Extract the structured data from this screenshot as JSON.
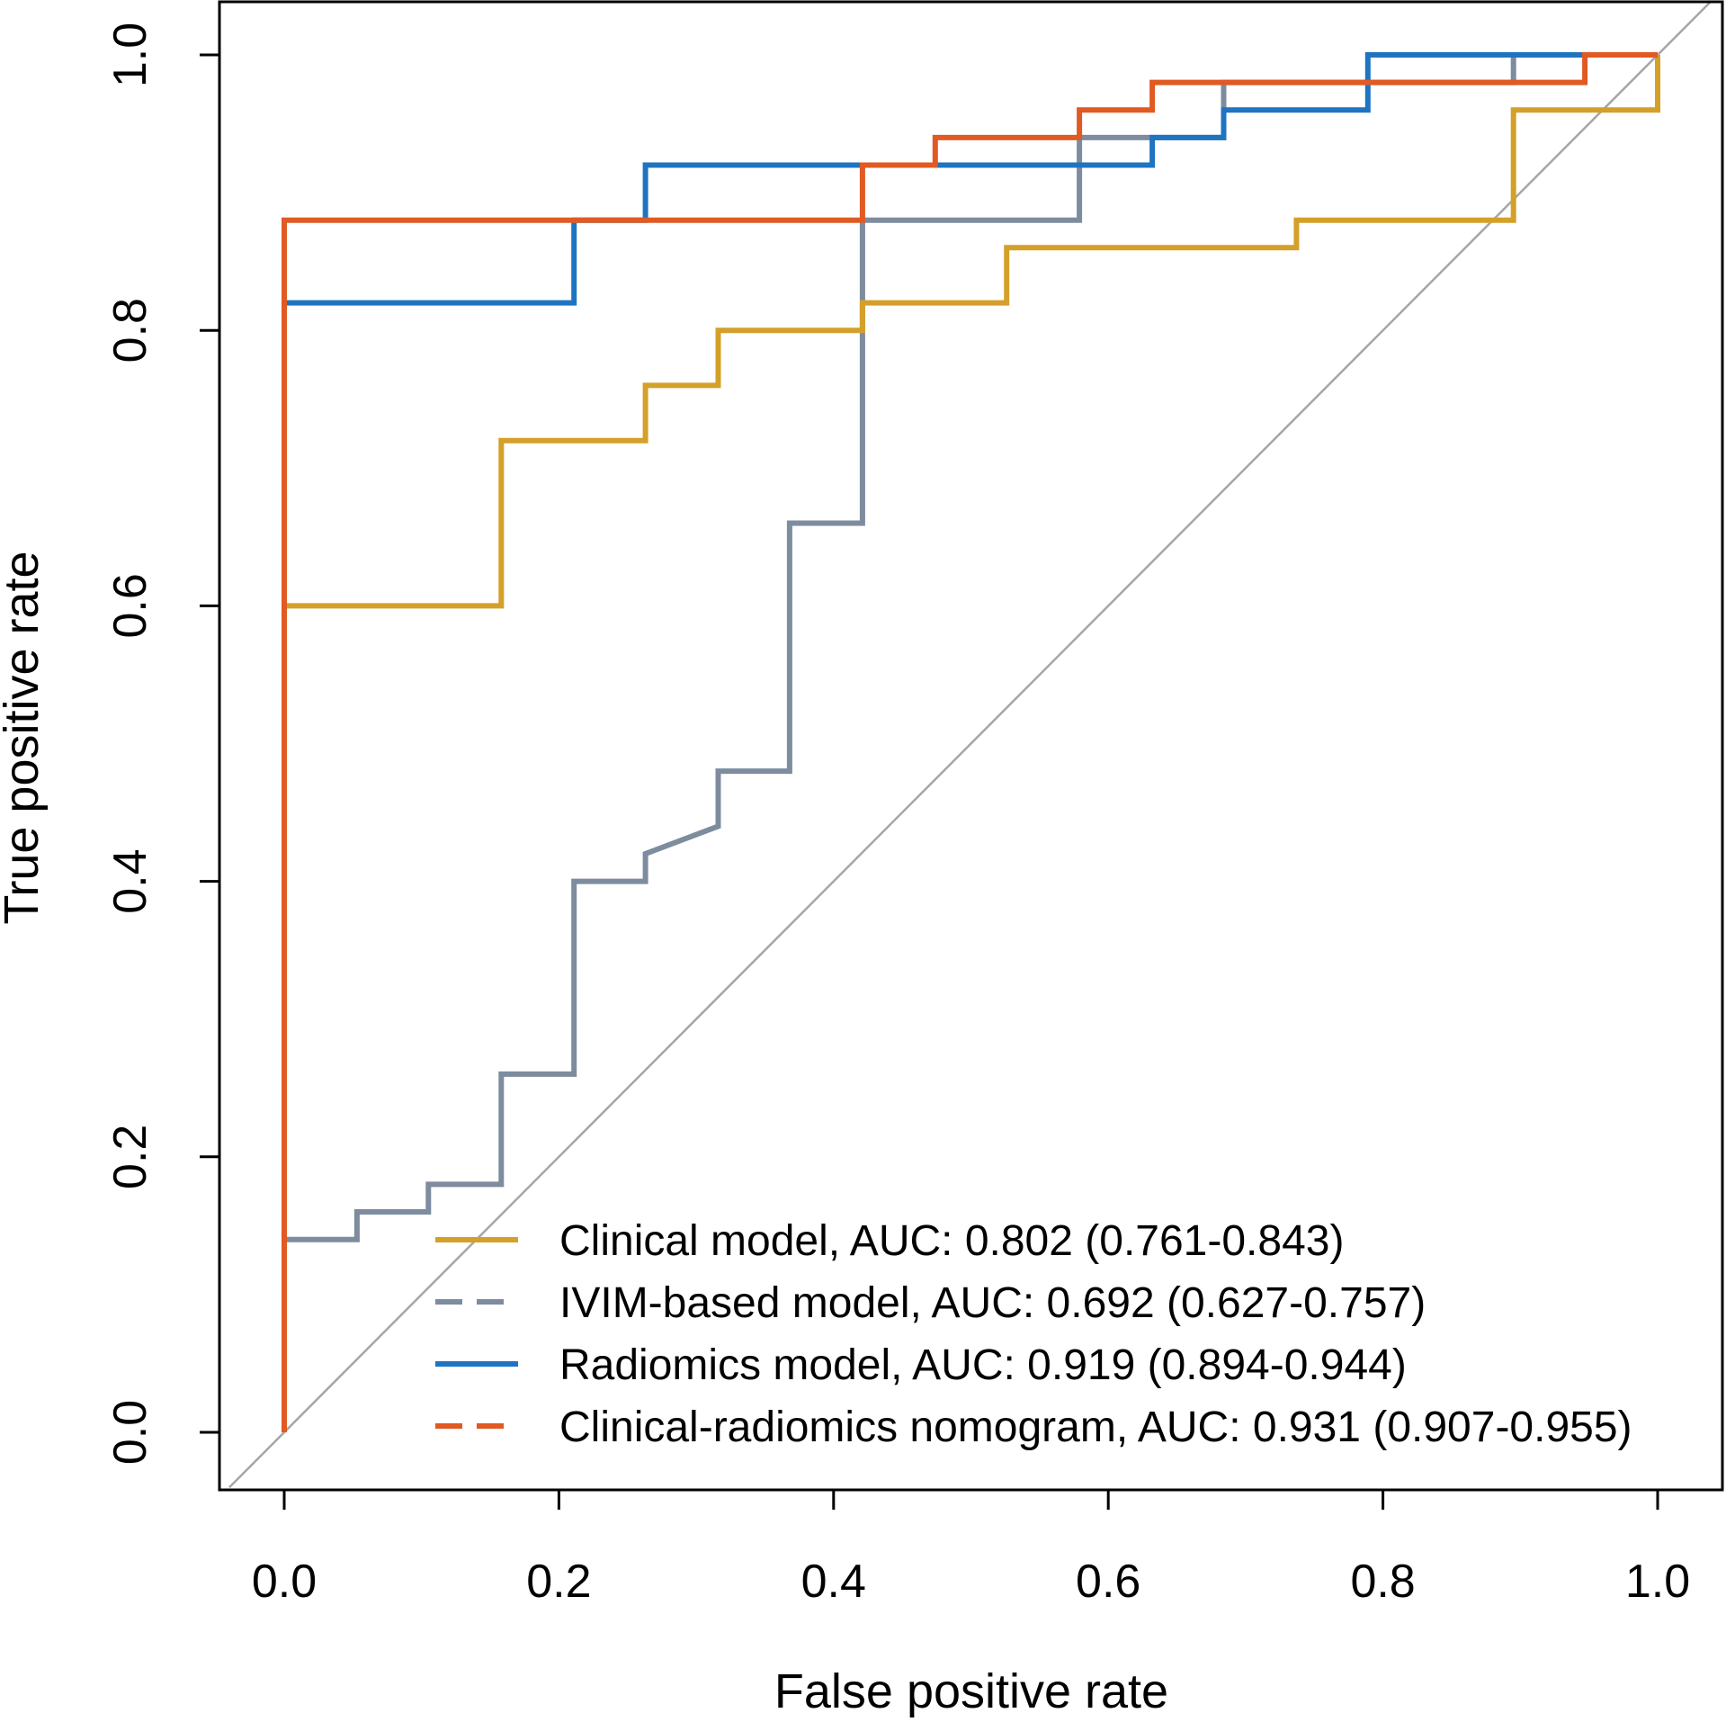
{
  "chart_data": {
    "type": "line",
    "title": "",
    "xlabel": "False positive rate",
    "ylabel": "True positive rate",
    "xlim": [
      0.0,
      1.0
    ],
    "ylim": [
      0.0,
      1.0
    ],
    "x_ticks": [
      "0.0",
      "0.2",
      "0.4",
      "0.6",
      "0.8",
      "1.0"
    ],
    "y_ticks": [
      "0.0",
      "0.2",
      "0.4",
      "0.6",
      "0.8",
      "1.0"
    ],
    "grid": false,
    "legend_position": "bottom-right",
    "reference_line": {
      "name": "chance",
      "color": "#a6a6a6",
      "x": [
        -0.04,
        1.04
      ],
      "y": [
        -0.04,
        1.04
      ]
    },
    "series": [
      {
        "name": "Clinical model, AUC: 0.802 (0.761-0.843)",
        "color": "#d4a02a",
        "dash": "solid",
        "x": [
          0,
          0,
          0.158,
          0.158,
          0.263,
          0.263,
          0.316,
          0.316,
          0.421,
          0.421,
          0.526,
          0.526,
          0.737,
          0.737,
          0.895,
          0.895,
          1.0,
          1.0
        ],
        "y": [
          0,
          0.6,
          0.6,
          0.72,
          0.72,
          0.76,
          0.76,
          0.8,
          0.8,
          0.82,
          0.82,
          0.86,
          0.86,
          0.88,
          0.88,
          0.96,
          0.96,
          1.0
        ]
      },
      {
        "name": "IVIM-based model, AUC: 0.692 (0.627-0.757)",
        "color": "#7d8c9e",
        "dash": "dashed",
        "x": [
          0,
          0,
          0.053,
          0.053,
          0.105,
          0.105,
          0.158,
          0.158,
          0.211,
          0.211,
          0.263,
          0.263,
          0.316,
          0.316,
          0.368,
          0.368,
          0.421,
          0.421,
          0.579,
          0.579,
          0.684,
          0.684,
          0.895,
          0.895,
          1.0
        ],
        "y": [
          0,
          0.14,
          0.14,
          0.16,
          0.16,
          0.18,
          0.18,
          0.26,
          0.26,
          0.4,
          0.4,
          0.42,
          0.44,
          0.48,
          0.48,
          0.66,
          0.66,
          0.88,
          0.88,
          0.94,
          0.94,
          0.98,
          0.98,
          1.0,
          1.0
        ]
      },
      {
        "name": "Radiomics model, AUC: 0.919 (0.894-0.944)",
        "color": "#1f74c1",
        "dash": "solid",
        "x": [
          0,
          0,
          0.211,
          0.211,
          0.263,
          0.263,
          0.632,
          0.632,
          0.684,
          0.684,
          0.789,
          0.789,
          1.0
        ],
        "y": [
          0,
          0.82,
          0.82,
          0.88,
          0.88,
          0.92,
          0.92,
          0.94,
          0.94,
          0.96,
          0.96,
          1.0,
          1.0
        ]
      },
      {
        "name": "Clinical-radiomics nomogram, AUC: 0.931 (0.907-0.955)",
        "color": "#e05a23",
        "dash": "dashed",
        "x": [
          0,
          0,
          0.421,
          0.421,
          0.474,
          0.474,
          0.579,
          0.579,
          0.632,
          0.632,
          0.947,
          0.947,
          1.0
        ],
        "y": [
          0,
          0.88,
          0.88,
          0.92,
          0.92,
          0.94,
          0.94,
          0.96,
          0.96,
          0.98,
          0.98,
          1.0,
          1.0
        ]
      }
    ]
  }
}
